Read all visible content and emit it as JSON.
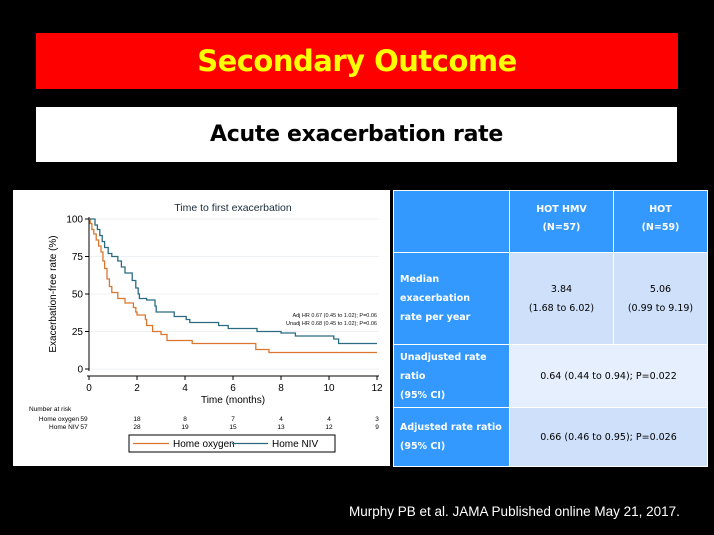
{
  "slide": {
    "title": "Secondary Outcome",
    "subtitle": "Acute exacerbation rate",
    "citation": "Murphy PB et al. JAMA Published online May 21, 2017.",
    "colors": {
      "background": "#000000",
      "title_bg": "#ff0000",
      "title_text": "#ffff00",
      "table_header": "#3399ff",
      "table_cell": "#cfe0fb",
      "table_cell_alt": "#e6effd"
    }
  },
  "table": {
    "headers": [
      {
        "line1": "",
        "line2": ""
      },
      {
        "line1": "HOT HMV",
        "line2": "(N=57)"
      },
      {
        "line1": "HOT",
        "line2": "(N=59)"
      }
    ],
    "rows": [
      {
        "label_line1": "Median exacerbation",
        "label_line2": "rate per year",
        "hmv_value": "3.84",
        "hmv_ci": "(1.68 to 6.02)",
        "hot_value": "5.06",
        "hot_ci": "(0.99 to 9.19)"
      },
      {
        "label_line1": "Unadjusted rate ratio",
        "label_line2": "(95% CI)",
        "merged_value": "0.64 (0.44 to 0.94); P=0.022"
      },
      {
        "label_line1": "Adjusted rate ratio",
        "label_line2": "(95% CI)",
        "merged_value": "0.66 (0.46 to 0.95); P=0.026"
      }
    ]
  },
  "chart_data": {
    "type": "line",
    "subtype": "kaplan-meier step",
    "title": "Time to first exacerbation",
    "xlabel": "Time (months)",
    "ylabel": "Exacerbation-free rate (%)",
    "xlim": [
      0,
      12
    ],
    "ylim": [
      0,
      100
    ],
    "xticks": [
      "0",
      "2",
      "4",
      "6",
      "8",
      "10",
      "12"
    ],
    "yticks": [
      "0",
      "25",
      "50",
      "75",
      "100"
    ],
    "grid": true,
    "annotations": [
      "Adj HR 0.67 (0.45 to 1.02); P=0.06",
      "Unadj HR 0.68 (0.45 to 1.02); P=0.06"
    ],
    "legend": {
      "position": "bottom",
      "entries": [
        "Home oxygen",
        "Home NIV"
      ]
    },
    "series": [
      {
        "name": "Home oxygen",
        "color": "#d9772e",
        "points": [
          [
            0,
            100
          ],
          [
            0.05,
            97
          ],
          [
            0.12,
            93
          ],
          [
            0.2,
            90
          ],
          [
            0.3,
            86
          ],
          [
            0.4,
            82
          ],
          [
            0.5,
            78
          ],
          [
            0.58,
            72
          ],
          [
            0.65,
            67
          ],
          [
            0.75,
            60
          ],
          [
            0.85,
            55
          ],
          [
            0.95,
            51
          ],
          [
            1.2,
            47
          ],
          [
            1.5,
            44
          ],
          [
            1.85,
            41
          ],
          [
            1.95,
            38
          ],
          [
            2.0,
            36
          ],
          [
            2.35,
            33
          ],
          [
            2.4,
            29
          ],
          [
            2.65,
            25
          ],
          [
            3.0,
            23
          ],
          [
            3.25,
            19
          ],
          [
            4.3,
            17
          ],
          [
            6.95,
            13
          ],
          [
            7.5,
            11
          ],
          [
            12,
            11
          ]
        ]
      },
      {
        "name": "Home NIV",
        "color": "#2a6b80",
        "points": [
          [
            0,
            100
          ],
          [
            0.2,
            100
          ],
          [
            0.25,
            96
          ],
          [
            0.35,
            93
          ],
          [
            0.45,
            89
          ],
          [
            0.55,
            85
          ],
          [
            0.65,
            81
          ],
          [
            0.8,
            77
          ],
          [
            0.95,
            75
          ],
          [
            1.2,
            72
          ],
          [
            1.35,
            68
          ],
          [
            1.5,
            64
          ],
          [
            1.8,
            59
          ],
          [
            1.95,
            54
          ],
          [
            2.05,
            50
          ],
          [
            2.1,
            47
          ],
          [
            2.4,
            46
          ],
          [
            2.75,
            42
          ],
          [
            2.8,
            38
          ],
          [
            3.55,
            35
          ],
          [
            4.05,
            33
          ],
          [
            4.2,
            31
          ],
          [
            5.4,
            29
          ],
          [
            5.8,
            27
          ],
          [
            7.0,
            25
          ],
          [
            8.0,
            24
          ],
          [
            8.6,
            22
          ],
          [
            10.2,
            20
          ],
          [
            10.4,
            17
          ],
          [
            12,
            17
          ]
        ]
      }
    ],
    "number_at_risk": {
      "label": "Number at risk",
      "times": [
        0,
        2,
        4,
        6,
        8,
        10,
        12
      ],
      "rows": [
        {
          "name": "Home oxygen",
          "values": [
            59,
            18,
            8,
            7,
            4,
            4,
            3
          ]
        },
        {
          "name": "Home NIV",
          "values": [
            57,
            28,
            19,
            15,
            13,
            12,
            9
          ]
        }
      ]
    }
  }
}
